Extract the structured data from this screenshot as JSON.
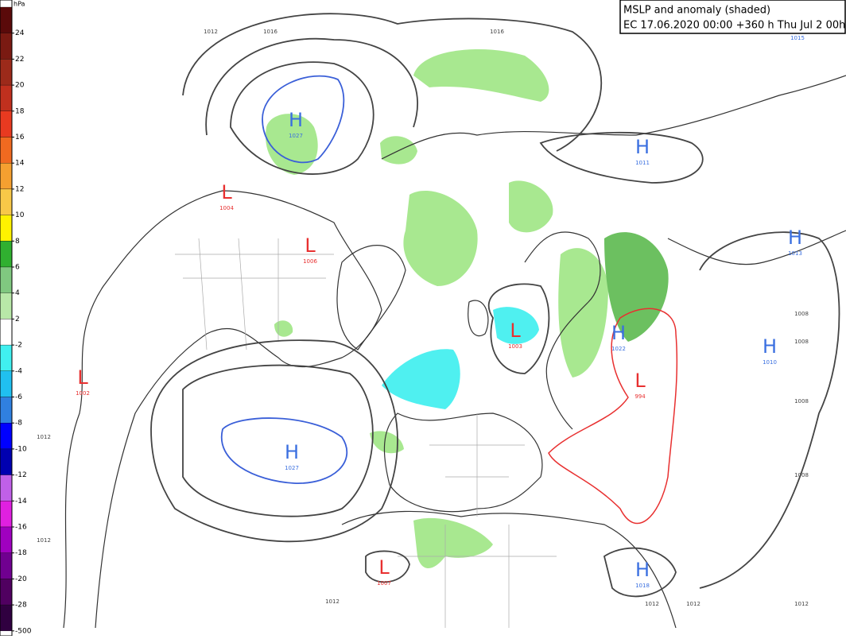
{
  "header": {
    "title": "MSLP and anomaly (shaded)",
    "subtitle": "EC 17.06.2020 00:00 +360 h Thu Jul 2 00hrs"
  },
  "colorbar": {
    "unit": "hPa",
    "levels": [
      {
        "label": "24",
        "color": "#5a0a0a"
      },
      {
        "label": "22",
        "color": "#7a1a12"
      },
      {
        "label": "20",
        "color": "#9c2a1a"
      },
      {
        "label": "18",
        "color": "#c0301e"
      },
      {
        "label": "16",
        "color": "#e83a20"
      },
      {
        "label": "14",
        "color": "#f06a20"
      },
      {
        "label": "12",
        "color": "#f5a030"
      },
      {
        "label": "10",
        "color": "#f8c848"
      },
      {
        "label": "8",
        "color": "#fff200"
      },
      {
        "label": "6",
        "color": "#30b030"
      },
      {
        "label": "4",
        "color": "#80c880"
      },
      {
        "label": "2",
        "color": "#b8e8a8"
      },
      {
        "label": "-2",
        "color": "#ffffff"
      },
      {
        "label": "-4",
        "color": "#40f0f0"
      },
      {
        "label": "-6",
        "color": "#20c0f0"
      },
      {
        "label": "-8",
        "color": "#3080e0"
      },
      {
        "label": "-10",
        "color": "#0000ff"
      },
      {
        "label": "-12",
        "color": "#0000b0"
      },
      {
        "label": "-14",
        "color": "#c060e8"
      },
      {
        "label": "-16",
        "color": "#e020e0"
      },
      {
        "label": "-18",
        "color": "#a000c0"
      },
      {
        "label": "-20",
        "color": "#700090"
      },
      {
        "label": "-28",
        "color": "#500060"
      },
      {
        "label": "-500",
        "color": "#300040"
      }
    ]
  },
  "centers": [
    {
      "letter": "H",
      "value": "1027"
    },
    {
      "letter": "L",
      "value": "1004"
    },
    {
      "letter": "L",
      "value": "1006"
    },
    {
      "letter": "H",
      "value": "1027"
    },
    {
      "letter": "L",
      "value": "1002"
    },
    {
      "letter": "L",
      "value": "1003"
    },
    {
      "letter": "H",
      "value": "1022"
    },
    {
      "letter": "L",
      "value": "994"
    },
    {
      "letter": "H",
      "value": "1011"
    },
    {
      "letter": "H",
      "value": "1013"
    },
    {
      "letter": "H",
      "value": "1010"
    },
    {
      "letter": "H",
      "value": "1018"
    },
    {
      "letter": "L",
      "value": "1007"
    }
  ],
  "isobar_labels": [
    "1012",
    "1016",
    "1016",
    "1015",
    "1008",
    "1008",
    "1008",
    "1008",
    "1012",
    "1012",
    "1012",
    "1012",
    "1012",
    "1012"
  ]
}
